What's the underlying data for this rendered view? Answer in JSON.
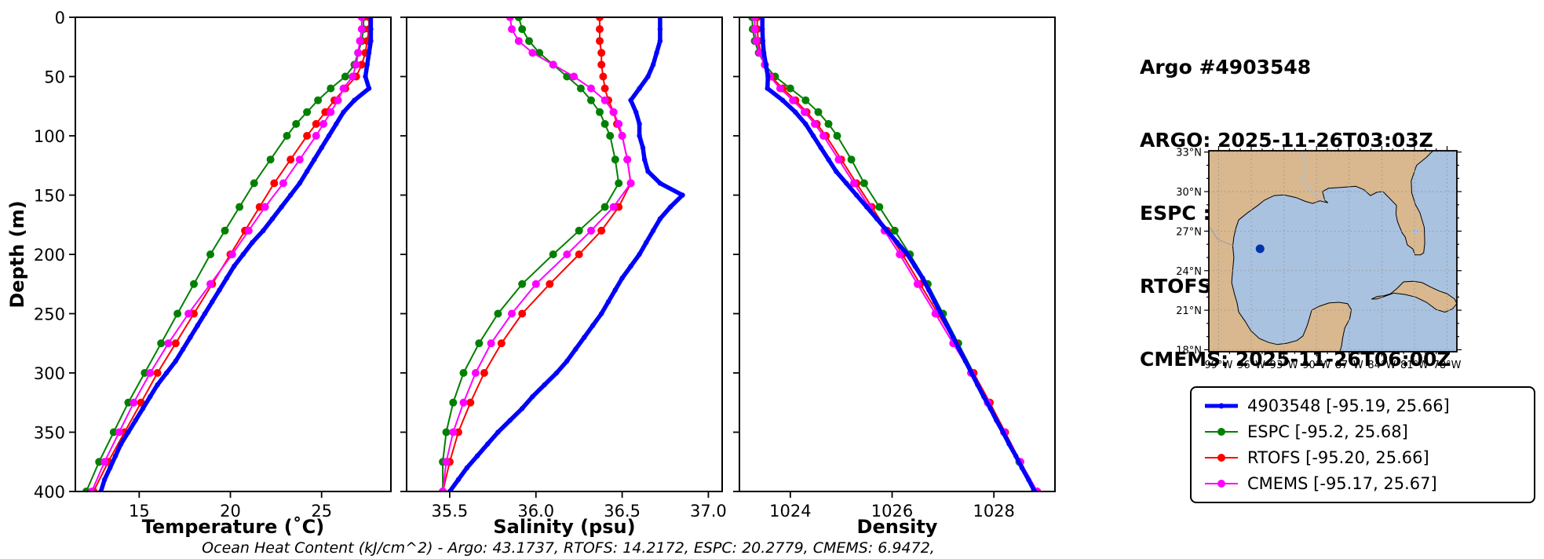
{
  "header": {
    "title": "Argo #4903548",
    "lines": [
      "ARGO: 2025-11-26T03:03Z",
      "ESPC : 2025-11-26T03:00Z",
      "RTOFS: 2025-11-26T00:00Z",
      "CMEMS: 2025-11-26T06:00Z"
    ]
  },
  "footnote": "Ocean Heat Content (kJ/cm^2) - Argo: 43.1737,  RTOFS: 14.2172,  ESPC: 20.2779,  CMEMS: 6.9472,",
  "legend": {
    "items": [
      {
        "id": "argo",
        "label": "4903548 [-95.19, 25.66]",
        "color": "#0000ff",
        "lw": 5,
        "marker_r": 3.5
      },
      {
        "id": "espc",
        "label": "ESPC [-95.2, 25.68]",
        "color": "#008000",
        "lw": 2,
        "marker_r": 5
      },
      {
        "id": "rtofs",
        "label": "RTOFS [-95.20, 25.66]",
        "color": "#ff0000",
        "lw": 2,
        "marker_r": 5
      },
      {
        "id": "cmems",
        "label": "CMEMS [-95.17, 25.67]",
        "color": "#ff00ff",
        "lw": 2,
        "marker_r": 5
      }
    ]
  },
  "map": {
    "water_color": "#a9c2e0",
    "land_color": "#d9b88f",
    "float_color": "#0033aa",
    "float_lon_w": 95.19,
    "float_lat": 25.66,
    "lon_tick_values": [
      99,
      96,
      93,
      90,
      87,
      84,
      81,
      78
    ],
    "lon_tick_labels": [
      "99°W",
      "96°W",
      "93°W",
      "90°W",
      "87°W",
      "84°W",
      "81°W",
      "78°W"
    ],
    "lat_tick_values": [
      33,
      30,
      27,
      24,
      21,
      18
    ],
    "lat_tick_labels": [
      "33°N",
      "30°N",
      "27°N",
      "24°N",
      "21°N",
      "18°N"
    ]
  },
  "chart_data": {
    "type": "line",
    "ylabel": "Depth (m)",
    "ylim": [
      0,
      400
    ],
    "y_inverted": true,
    "yticks": [
      0,
      50,
      100,
      150,
      200,
      250,
      300,
      350,
      400
    ],
    "ytick_labels": [
      "0",
      "50",
      "100",
      "150",
      "200",
      "250",
      "300",
      "350",
      "400"
    ],
    "draw_order": [
      "espc",
      "rtofs",
      "cmems",
      "argo"
    ],
    "series_styles": {
      "argo": {
        "name": "4903548",
        "color": "#0000ff",
        "lw": 5.5,
        "r": 3.2
      },
      "espc": {
        "name": "ESPC",
        "color": "#008000",
        "lw": 2,
        "r": 5
      },
      "rtofs": {
        "name": "RTOFS",
        "color": "#ff0000",
        "lw": 2,
        "r": 5
      },
      "cmems": {
        "name": "CMEMS",
        "color": "#ff00ff",
        "lw": 2,
        "r": 5
      }
    },
    "argo_depths": [
      0,
      10,
      20,
      30,
      40,
      50,
      60,
      70,
      80,
      90,
      100,
      110,
      120,
      130,
      140,
      150,
      160,
      170,
      180,
      190,
      200,
      210,
      220,
      230,
      240,
      250,
      260,
      270,
      280,
      290,
      300,
      310,
      320,
      330,
      340,
      350,
      360,
      370,
      380,
      390,
      400
    ],
    "model_depths": [
      0,
      10,
      20,
      30,
      40,
      50,
      60,
      70,
      80,
      90,
      100,
      120,
      140,
      160,
      180,
      200,
      225,
      250,
      275,
      300,
      325,
      350,
      375,
      400
    ],
    "panels": [
      {
        "id": "temperature",
        "xlabel": "Temperature (˚C)",
        "xlim": [
          11.5,
          28.8
        ],
        "xticks": [
          15,
          20,
          25
        ],
        "xtick_labels": [
          "15",
          "20",
          "25"
        ],
        "series": {
          "argo": [
            27.7,
            27.7,
            27.7,
            27.6,
            27.5,
            27.4,
            27.6,
            26.8,
            26.2,
            25.8,
            25.4,
            25.0,
            24.6,
            24.2,
            23.8,
            23.3,
            22.8,
            22.3,
            21.8,
            21.2,
            20.7,
            20.2,
            19.8,
            19.4,
            19.0,
            18.6,
            18.2,
            17.8,
            17.4,
            17.0,
            16.5,
            16.0,
            15.6,
            15.2,
            14.8,
            14.4,
            14.0,
            13.7,
            13.4,
            13.1,
            12.9
          ],
          "espc": [
            27.3,
            27.3,
            27.2,
            27.0,
            26.8,
            26.3,
            25.5,
            24.8,
            24.2,
            23.6,
            23.1,
            22.2,
            21.3,
            20.5,
            19.7,
            18.9,
            18.0,
            17.1,
            16.2,
            15.3,
            14.4,
            13.6,
            12.8,
            12.1
          ],
          "rtofs": [
            27.6,
            27.6,
            27.5,
            27.4,
            27.2,
            26.9,
            26.3,
            25.7,
            25.2,
            24.7,
            24.2,
            23.3,
            22.4,
            21.6,
            20.8,
            20.0,
            19.0,
            18.0,
            17.0,
            16.0,
            15.1,
            14.2,
            13.3,
            12.5
          ],
          "cmems": [
            27.2,
            27.2,
            27.1,
            27.0,
            26.9,
            26.7,
            26.2,
            25.9,
            25.5,
            25.1,
            24.7,
            23.8,
            22.9,
            21.9,
            21.0,
            20.1,
            18.9,
            17.7,
            16.6,
            15.6,
            14.7,
            13.9,
            13.1,
            12.4
          ]
        }
      },
      {
        "id": "salinity",
        "xlabel": "Salinity (psu)",
        "xlim": [
          35.25,
          37.08
        ],
        "xticks": [
          35.5,
          36.0,
          36.5,
          37.0
        ],
        "xtick_labels": [
          "35.5",
          "36.0",
          "36.5",
          "37.0"
        ],
        "series": {
          "argo": [
            36.72,
            36.72,
            36.72,
            36.7,
            36.68,
            36.65,
            36.6,
            36.55,
            36.58,
            36.6,
            36.6,
            36.62,
            36.63,
            36.65,
            36.72,
            36.85,
            36.78,
            36.72,
            36.68,
            36.64,
            36.6,
            36.55,
            36.5,
            36.46,
            36.42,
            36.38,
            36.33,
            36.28,
            36.23,
            36.18,
            36.12,
            36.05,
            35.98,
            35.92,
            35.85,
            35.78,
            35.72,
            35.66,
            35.6,
            35.55,
            35.5
          ],
          "espc": [
            35.9,
            35.92,
            35.96,
            36.02,
            36.1,
            36.18,
            36.26,
            36.32,
            36.37,
            36.4,
            36.43,
            36.46,
            36.48,
            36.4,
            36.25,
            36.1,
            35.92,
            35.78,
            35.67,
            35.58,
            35.52,
            35.48,
            35.46,
            35.46
          ],
          "rtofs": [
            36.37,
            36.37,
            36.37,
            36.38,
            36.38,
            36.39,
            36.4,
            36.42,
            36.45,
            36.47,
            36.5,
            36.53,
            36.55,
            36.48,
            36.38,
            36.25,
            36.08,
            35.92,
            35.8,
            35.7,
            35.62,
            35.55,
            35.5,
            35.46
          ],
          "cmems": [
            35.85,
            35.86,
            35.9,
            35.98,
            36.1,
            36.22,
            36.32,
            36.4,
            36.45,
            36.48,
            36.5,
            36.53,
            36.55,
            36.45,
            36.32,
            36.18,
            36.0,
            35.86,
            35.74,
            35.65,
            35.58,
            35.52,
            35.48,
            35.46
          ]
        }
      },
      {
        "id": "density",
        "xlabel": "Density",
        "xlim": [
          1023.0,
          1029.2
        ],
        "xticks": [
          1024,
          1026,
          1028
        ],
        "xtick_labels": [
          "1024",
          "1026",
          "1028"
        ],
        "series": {
          "argo": [
            1023.45,
            1023.45,
            1023.46,
            1023.48,
            1023.52,
            1023.56,
            1023.55,
            1023.85,
            1024.1,
            1024.3,
            1024.45,
            1024.6,
            1024.75,
            1024.9,
            1025.1,
            1025.3,
            1025.5,
            1025.7,
            1025.9,
            1026.1,
            1026.3,
            1026.45,
            1026.6,
            1026.72,
            1026.84,
            1026.96,
            1027.08,
            1027.2,
            1027.32,
            1027.44,
            1027.56,
            1027.68,
            1027.8,
            1027.93,
            1028.05,
            1028.18,
            1028.3,
            1028.43,
            1028.55,
            1028.68,
            1028.8
          ],
          "espc": [
            1023.25,
            1023.26,
            1023.3,
            1023.38,
            1023.5,
            1023.7,
            1024.0,
            1024.3,
            1024.55,
            1024.75,
            1024.92,
            1025.2,
            1025.45,
            1025.75,
            1026.05,
            1026.35,
            1026.7,
            1027.0,
            1027.3,
            1027.6,
            1027.9,
            1028.2,
            1028.5,
            1028.8
          ],
          "rtofs": [
            1023.35,
            1023.35,
            1023.37,
            1023.42,
            1023.5,
            1023.62,
            1023.85,
            1024.1,
            1024.32,
            1024.52,
            1024.7,
            1025.0,
            1025.3,
            1025.6,
            1025.9,
            1026.2,
            1026.55,
            1026.9,
            1027.25,
            1027.6,
            1027.92,
            1028.22,
            1028.52,
            1028.85
          ],
          "cmems": [
            1023.3,
            1023.3,
            1023.33,
            1023.4,
            1023.5,
            1023.6,
            1023.8,
            1024.05,
            1024.28,
            1024.48,
            1024.65,
            1024.95,
            1025.25,
            1025.55,
            1025.85,
            1026.15,
            1026.5,
            1026.85,
            1027.2,
            1027.55,
            1027.88,
            1028.2,
            1028.52,
            1028.85
          ]
        }
      }
    ]
  }
}
